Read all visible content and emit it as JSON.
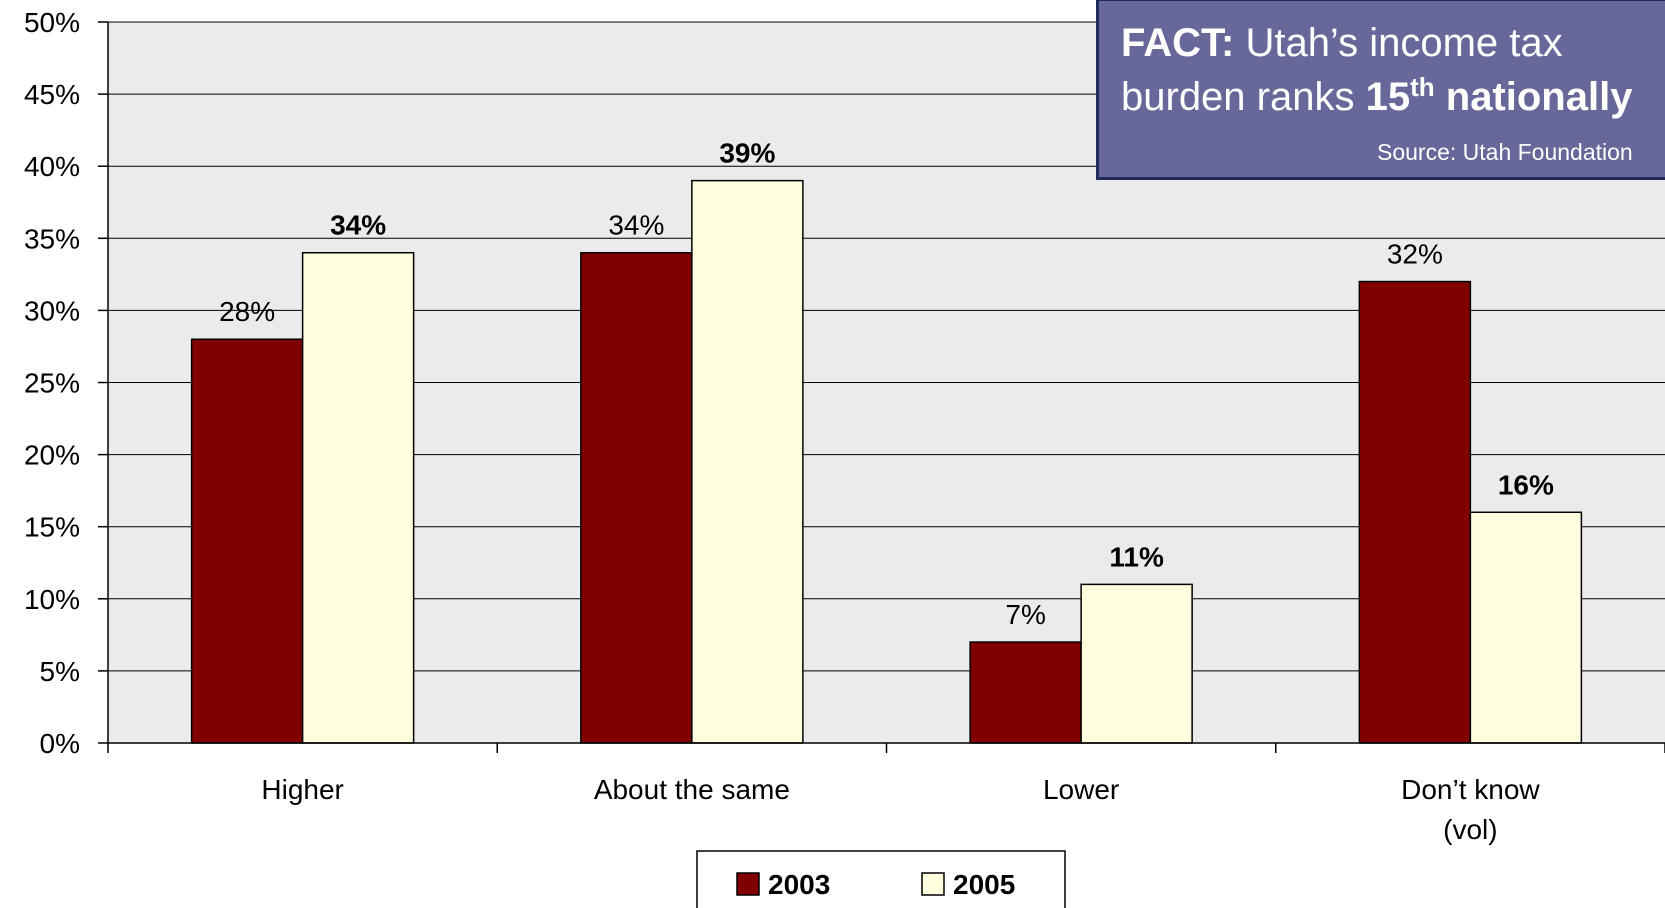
{
  "chart_data": {
    "type": "bar",
    "categories": [
      "Higher",
      "About the same",
      "Lower",
      "Don’t know (vol)"
    ],
    "category_lines": [
      [
        "Higher"
      ],
      [
        "About the same"
      ],
      [
        "Lower"
      ],
      [
        "Don’t know",
        "(vol)"
      ]
    ],
    "series": [
      {
        "name": "2003",
        "values": [
          28,
          34,
          7,
          32
        ],
        "labels": [
          "28%",
          "34%",
          "7%",
          "32%"
        ],
        "color": "#800000",
        "label_bold": false
      },
      {
        "name": "2005",
        "values": [
          34,
          39,
          11,
          16
        ],
        "labels": [
          "34%",
          "39%",
          "11%",
          "16%"
        ],
        "color": "#ffffe0",
        "label_bold": true
      }
    ],
    "ylim": [
      0,
      50
    ],
    "yticks": [
      0,
      5,
      10,
      15,
      20,
      25,
      30,
      35,
      40,
      45,
      50
    ],
    "ytick_labels": [
      "0%",
      "5%",
      "10%",
      "15%",
      "20%",
      "25%",
      "30%",
      "35%",
      "40%",
      "45%",
      "50%"
    ],
    "grid": true,
    "legend_position": "bottom-center",
    "plot_background": "#ebebeb"
  },
  "fact_box": {
    "lead": "FACT:",
    "line1_text": " Utah’s income tax",
    "line2_text": "burden ranks ",
    "rank": "15",
    "rank_suffix": "th",
    "rank_word": " nationally",
    "source": "Source: Utah Foundation",
    "background": "#67679a"
  }
}
